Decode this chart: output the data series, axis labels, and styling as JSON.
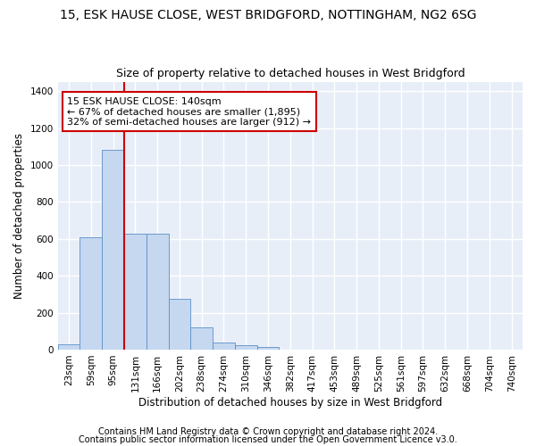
{
  "title": "15, ESK HAUSE CLOSE, WEST BRIDGFORD, NOTTINGHAM, NG2 6SG",
  "subtitle": "Size of property relative to detached houses in West Bridgford",
  "xlabel": "Distribution of detached houses by size in West Bridgford",
  "ylabel": "Number of detached properties",
  "categories": [
    "23sqm",
    "59sqm",
    "95sqm",
    "131sqm",
    "166sqm",
    "202sqm",
    "238sqm",
    "274sqm",
    "310sqm",
    "346sqm",
    "382sqm",
    "417sqm",
    "453sqm",
    "489sqm",
    "525sqm",
    "561sqm",
    "597sqm",
    "632sqm",
    "668sqm",
    "704sqm",
    "740sqm"
  ],
  "bar_heights": [
    30,
    610,
    1085,
    630,
    630,
    275,
    120,
    40,
    22,
    15,
    0,
    0,
    0,
    0,
    0,
    0,
    0,
    0,
    0,
    0,
    0
  ],
  "bar_color": "#c5d8f0",
  "bar_edge_color": "#5b8fc9",
  "red_line_x": 2.5,
  "annotation_text": "15 ESK HAUSE CLOSE: 140sqm\n← 67% of detached houses are smaller (1,895)\n32% of semi-detached houses are larger (912) →",
  "annotation_box_facecolor": "#ffffff",
  "annotation_box_edgecolor": "#cc0000",
  "red_line_color": "#cc0000",
  "ylim": [
    0,
    1450
  ],
  "yticks": [
    0,
    200,
    400,
    600,
    800,
    1000,
    1200,
    1400
  ],
  "footnote1": "Contains HM Land Registry data © Crown copyright and database right 2024.",
  "footnote2": "Contains public sector information licensed under the Open Government Licence v3.0.",
  "fig_facecolor": "#ffffff",
  "ax_facecolor": "#e8eef8",
  "grid_color": "#ffffff",
  "title_fontsize": 10,
  "subtitle_fontsize": 9,
  "axis_label_fontsize": 8.5,
  "tick_fontsize": 7.5,
  "annotation_fontsize": 8,
  "footnote_fontsize": 7
}
